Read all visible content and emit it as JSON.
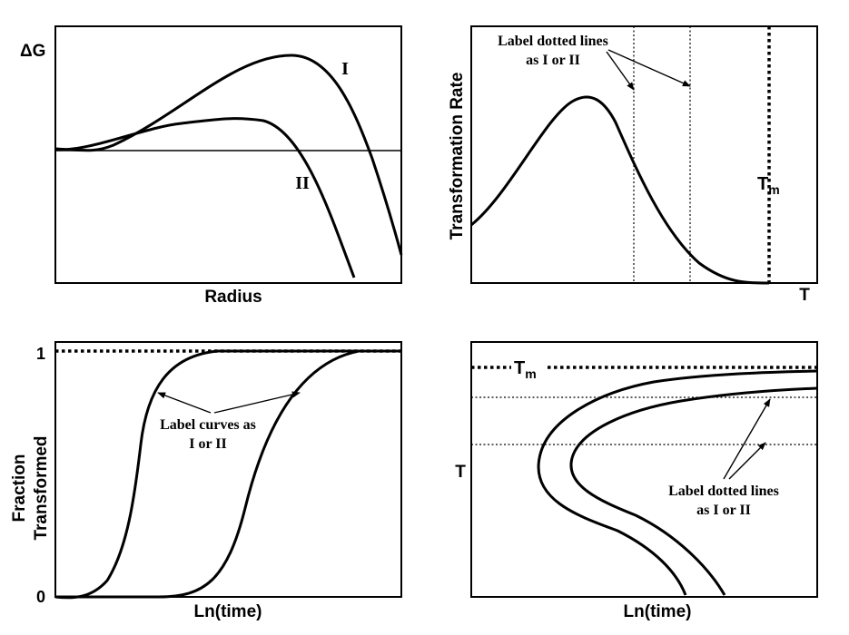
{
  "panel_nucleation": {
    "y_label": "ΔG",
    "x_label": "Radius",
    "curve_labels": [
      "I",
      "II"
    ]
  },
  "panel_rate": {
    "y_label": "Transformation Rate",
    "x_label": "T",
    "note_line1": "Label dotted lines",
    "note_line2": "as I or II",
    "tm_main": "T",
    "tm_sub": "m"
  },
  "panel_fraction": {
    "y_label_line1": "Fraction",
    "y_label_line2": "Transformed",
    "x_label": "Ln(time)",
    "tick_top": "1",
    "tick_bottom": "0",
    "note_line1": "Label curves as",
    "note_line2": "I or II"
  },
  "panel_ttt": {
    "y_label": "T",
    "x_label": "Ln(time)",
    "tm_main": "T",
    "tm_sub": "m",
    "note_line1": "Label dotted lines",
    "note_line2": "as I or II"
  }
}
